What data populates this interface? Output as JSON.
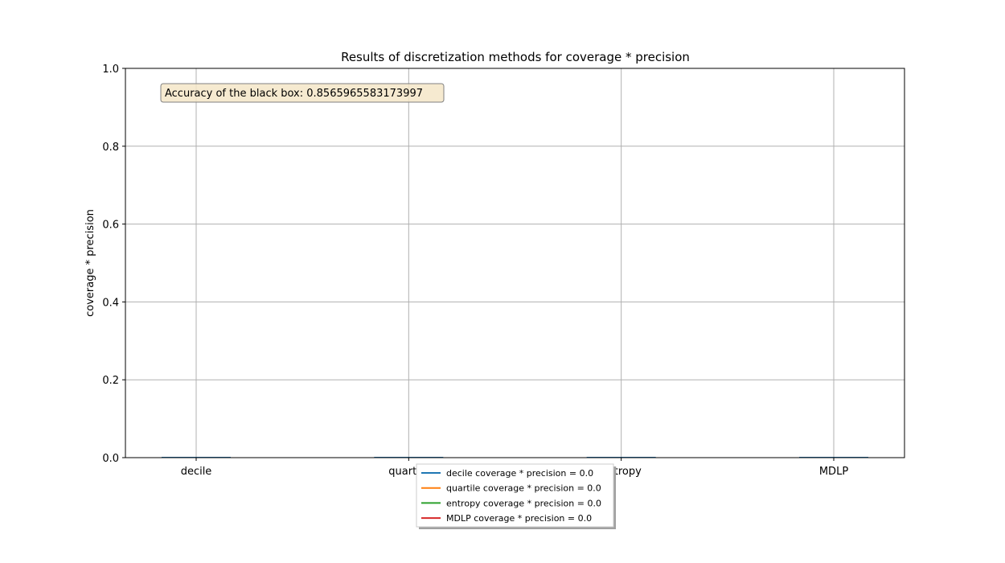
{
  "chart_data": {
    "type": "bar",
    "title": "Results of discretization methods for coverage * precision",
    "xlabel": "",
    "ylabel": "coverage * precision",
    "categories": [
      "decile",
      "quartile",
      "entropy",
      "MDLP"
    ],
    "values": [
      0.0,
      0.0,
      0.0,
      0.0
    ],
    "ylim": [
      0,
      1
    ],
    "yticks": [
      "0.0",
      "0.2",
      "0.4",
      "0.6",
      "0.8",
      "1.0"
    ],
    "grid": true,
    "annotation": "Accuracy of the black box: 0.8565965583173997",
    "legend": {
      "placement": "bottom-center",
      "entries": [
        {
          "label": "decile coverage * precision = 0.0",
          "color": "#1f77b4"
        },
        {
          "label": "quartile coverage * precision = 0.0",
          "color": "#ff7f0e"
        },
        {
          "label": "entropy coverage * precision = 0.0",
          "color": "#2ca02c"
        },
        {
          "label": "MDLP coverage * precision = 0.0",
          "color": "#d62728"
        }
      ]
    },
    "bar_color": "#1f77b4"
  }
}
